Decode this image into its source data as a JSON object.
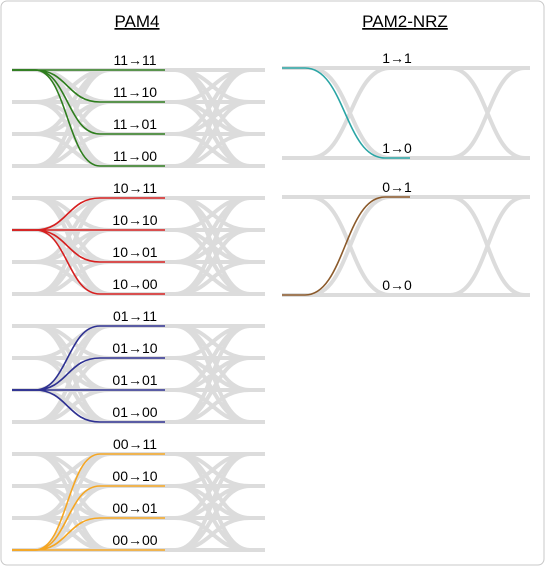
{
  "pam4": {
    "title": "PAM4",
    "groups": [
      {
        "color": "#2e7d1e",
        "labels": [
          "11→11",
          "11→10",
          "11→01",
          "11→00"
        ]
      },
      {
        "color": "#d62020",
        "labels": [
          "10→11",
          "10→10",
          "10→01",
          "10→00"
        ]
      },
      {
        "color": "#2e3192",
        "labels": [
          "01→11",
          "01→10",
          "01→01",
          "01→00"
        ]
      },
      {
        "color": "#f5a623",
        "labels": [
          "00→11",
          "00→10",
          "00→01",
          "00→00"
        ]
      }
    ]
  },
  "nrz": {
    "title": "PAM2-NRZ",
    "groups": [
      {
        "color": "#2aa5a5",
        "labels": [
          "1→1",
          "1→0"
        ]
      },
      {
        "color": "#8b5a2b",
        "labels": [
          "0→1",
          "0→0"
        ]
      }
    ]
  }
}
